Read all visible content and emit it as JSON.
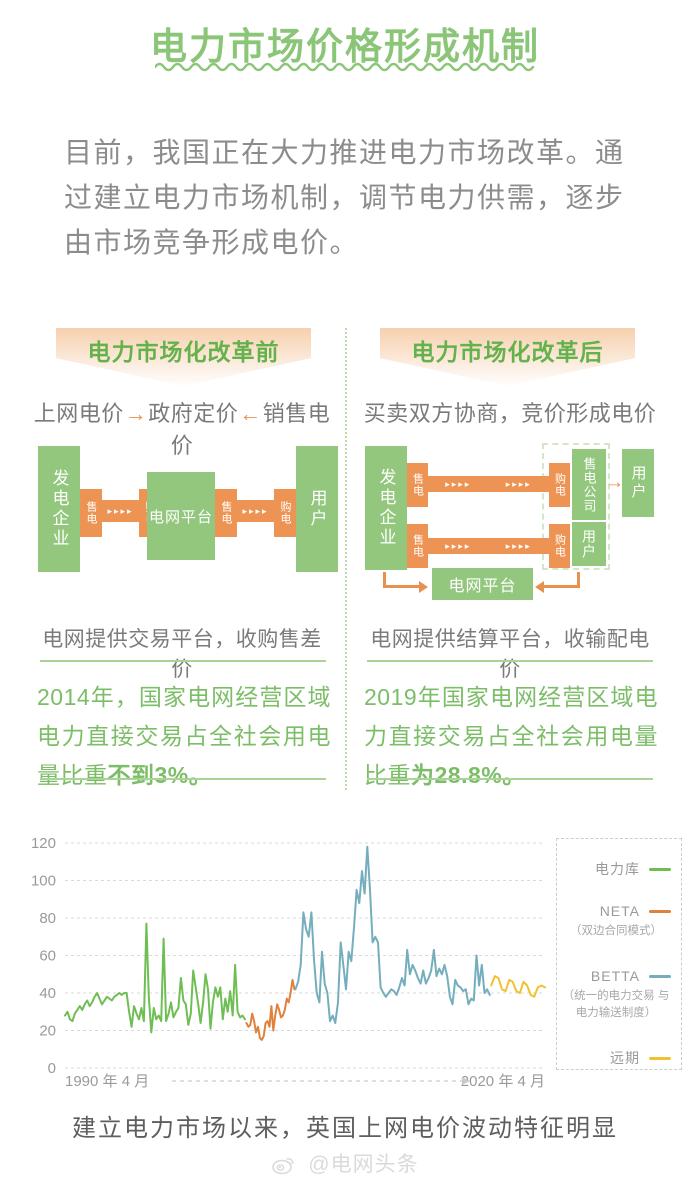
{
  "title": {
    "text": "电力市场价格形成机制"
  },
  "intro": {
    "text": "目前，我国正在大力推进电力市场改革。通过建立电力市场机制，调节电力供需，逐步由市场竞争形成电价。"
  },
  "colors": {
    "accent_green": "#8bc577",
    "box_green": "#93c77e",
    "box_orange": "#ed9454",
    "stat_green": "#7cbd67",
    "banner_peach": "#f7d0ae"
  },
  "before": {
    "banner": "电力市场化改革前",
    "flow": {
      "part1": "上网电价",
      "arrow1": "→",
      "part2": "政府定价",
      "arrow2": "←",
      "part3": "销售电价"
    },
    "diagram": {
      "generator": "发电企业",
      "sell": "售电",
      "buy": "购电",
      "grid_platform": "电网平台",
      "user": "用户",
      "dots": "▸▸▸▸"
    },
    "caption": "电网提供交易平台，收购售差价",
    "stat_normal": "2014年，国家电网经营区域电力直接交易占全社会用电量比重",
    "stat_bold": "不到3%。"
  },
  "after": {
    "banner": "电力市场化改革后",
    "flow": "买卖双方协商，竞价形成电价",
    "diagram": {
      "generator": "发电企业",
      "sell": "售电",
      "buy": "购电",
      "seller_company": "售电公司",
      "user_right": "用户",
      "user_inner": "用户",
      "grid_platform": "电网平台",
      "dots": "▸▸▸▸",
      "arrow_right": "→"
    },
    "caption": "电网提供结算平台，收输配电价",
    "stat_normal": "2019年国家电网经营区域电力直接交易占全社会用电量比重",
    "stat_bold": "为28.8%。"
  },
  "chart_data": {
    "type": "line",
    "title": "",
    "xlabel": "",
    "ylabel": "",
    "ylim": [
      0,
      120
    ],
    "yticks": [
      0,
      20,
      40,
      60,
      80,
      100,
      120
    ],
    "grid": true,
    "legend_position": "right",
    "x_axis": {
      "start_label": "1990 年 4 月",
      "end_label": "2020 年 4 月"
    },
    "series": [
      {
        "name": "电力库",
        "note": "",
        "color": "#6fbe54",
        "x_start": 0.0,
        "x_end": 0.375,
        "values": [
          28,
          30,
          26,
          25,
          29,
          31,
          33,
          31,
          34,
          36,
          33,
          35,
          38,
          40,
          37,
          34,
          36,
          38,
          37,
          36,
          38,
          39,
          40,
          39,
          40,
          40,
          30,
          22,
          33,
          29,
          26,
          32,
          25,
          77,
          38,
          19,
          32,
          26,
          28,
          25,
          69,
          25,
          29,
          35,
          27,
          30,
          32,
          48,
          36,
          34,
          23,
          29,
          52,
          43,
          34,
          24,
          35,
          50,
          42,
          21,
          35,
          43,
          38,
          43,
          26,
          37,
          30,
          41,
          28,
          55,
          30,
          27,
          28,
          26
        ]
      },
      {
        "name": "NETA",
        "note": "（双边合同模式）",
        "color": "#e0813c",
        "x_start": 0.378,
        "x_end": 0.478,
        "values": [
          24,
          22,
          23,
          29,
          25,
          19,
          22,
          16,
          15,
          17,
          24,
          25,
          22,
          33,
          20,
          28,
          34,
          31,
          27,
          28,
          31,
          37,
          35,
          40,
          47,
          42
        ]
      },
      {
        "name": "BETTA",
        "note": "（统一的电力交易 与电力输送制度）",
        "color": "#74aebd",
        "x_start": 0.48,
        "x_end": 0.885,
        "values": [
          42,
          46,
          55,
          83,
          74,
          70,
          83,
          58,
          40,
          35,
          62,
          45,
          40,
          25,
          28,
          24,
          35,
          67,
          55,
          42,
          62,
          57,
          75,
          95,
          88,
          105,
          93,
          118,
          95,
          67,
          70,
          67,
          43,
          40,
          38,
          40,
          42,
          41,
          39,
          43,
          48,
          44,
          63,
          50,
          55,
          52,
          48,
          45,
          52,
          45,
          48,
          52,
          63,
          49,
          53,
          50,
          55,
          49,
          38,
          34,
          47,
          44,
          43,
          41,
          42,
          34,
          37,
          36,
          60,
          44,
          55,
          40,
          42,
          39
        ]
      },
      {
        "name": "远期",
        "note": "",
        "color": "#f0c232",
        "x_start": 0.888,
        "x_end": 1.0,
        "values": [
          44,
          49,
          48,
          42,
          41,
          47,
          46,
          41,
          40,
          46,
          44,
          39,
          38,
          43,
          44,
          43
        ]
      }
    ]
  },
  "chart_caption": "建立电力市场以来，英国上网电价波动特征明显",
  "footer": {
    "handle": "@电网头条"
  }
}
